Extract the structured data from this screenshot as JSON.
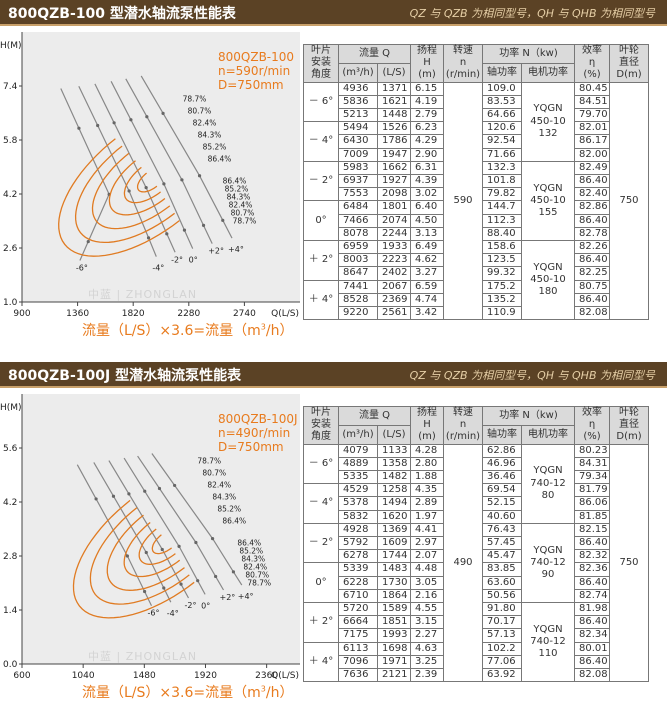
{
  "header_note": "QZ 与 QZB 为相同型号，QH 与 QHB 为相同型号",
  "table_headers": {
    "blade_angle": [
      "叶片",
      "安装",
      "角度"
    ],
    "flow": "流量 Q",
    "flow_unit_1": "(m³/h)",
    "flow_unit_2": "(L/S)",
    "head": [
      "扬程",
      "H",
      "(m)"
    ],
    "speed": [
      "转速",
      "n",
      "(r/min)"
    ],
    "power": "功率 N（kw)",
    "shaft_power": "轴功率",
    "motor_power": "电机功率",
    "efficiency": [
      "效率",
      "η",
      "(%)"
    ],
    "impeller": [
      "叶轮",
      "直径",
      "D(m)"
    ]
  },
  "panels": [
    {
      "title": "800QZB-100 型潜水轴流泵性能表",
      "params": {
        "model": "800QZB-100",
        "speed": "n=590r/min",
        "diameter": "D=750mm"
      },
      "formula": {
        "text1": "流量（L/S）×3.6=流量（m",
        "sup": "3",
        "text2": "/h）"
      },
      "watermark": "中蓝 | ZHONGLAN",
      "table": {
        "speed": "590",
        "impeller": "750",
        "groups": [
          {
            "angle": "－ 6°",
            "motor": ""
          },
          {
            "angle": "－ 4°",
            "motor": "YQGN\n450-10\n132"
          },
          {
            "angle": "－ 2°",
            "motor": ""
          },
          {
            "angle": "0°",
            "motor": "YQGN\n450-10\n155"
          },
          {
            "angle": "＋ 2°",
            "motor": ""
          },
          {
            "angle": "＋ 4°",
            "motor": "YQGN\n450-10\n180"
          }
        ],
        "rows": [
          [
            "4936",
            "1371",
            "6.15",
            "109.0",
            "80.45"
          ],
          [
            "5836",
            "1621",
            "4.19",
            "83.53",
            "84.51"
          ],
          [
            "5213",
            "1448",
            "2.79",
            "64.66",
            "79.70"
          ],
          [
            "5494",
            "1526",
            "6.23",
            "120.6",
            "82.01"
          ],
          [
            "6430",
            "1786",
            "4.29",
            "92.54",
            "86.17"
          ],
          [
            "7009",
            "1947",
            "2.90",
            "71.66",
            "82.00"
          ],
          [
            "5983",
            "1662",
            "6.31",
            "132.3",
            "82.49"
          ],
          [
            "6937",
            "1927",
            "4.39",
            "101.8",
            "86.40"
          ],
          [
            "7553",
            "2098",
            "3.02",
            "79.82",
            "82.40"
          ],
          [
            "6484",
            "1801",
            "6.40",
            "144.7",
            "82.86"
          ],
          [
            "7466",
            "2074",
            "4.50",
            "112.3",
            "86.40"
          ],
          [
            "8078",
            "2244",
            "3.13",
            "88.40",
            "82.78"
          ],
          [
            "6959",
            "1933",
            "6.49",
            "158.6",
            "82.26"
          ],
          [
            "8003",
            "2223",
            "4.62",
            "123.5",
            "86.40"
          ],
          [
            "8647",
            "2402",
            "3.27",
            "99.32",
            "82.25"
          ],
          [
            "7441",
            "2067",
            "6.59",
            "175.2",
            "80.75"
          ],
          [
            "8528",
            "2369",
            "4.74",
            "135.2",
            "86.40"
          ],
          [
            "9220",
            "2561",
            "3.42",
            "110.9",
            "82.08"
          ]
        ]
      }
    },
    {
      "title": "800QZB-100J 型潜水轴流泵性能表",
      "params": {
        "model": "800QZB-100J",
        "speed": "n=490r/min",
        "diameter": "D=750mm"
      },
      "formula": {
        "text1": "流量（L/S）×3.6=流量（m",
        "sup": "3",
        "text2": "/h）"
      },
      "watermark": "中蓝 | ZHONGLAN",
      "table": {
        "speed": "490",
        "impeller": "750",
        "groups": [
          {
            "angle": "－ 6°",
            "motor": "YQGN\n740-12\n80"
          },
          {
            "angle": "－ 4°",
            "motor": ""
          },
          {
            "angle": "－ 2°",
            "motor": "YQGN\n740-12\n90"
          },
          {
            "angle": "0°",
            "motor": ""
          },
          {
            "angle": "＋ 2°",
            "motor": "YQGN\n740-12\n110"
          },
          {
            "angle": "＋ 4°",
            "motor": ""
          }
        ],
        "rows": [
          [
            "4079",
            "1133",
            "4.28",
            "62.86",
            "80.23"
          ],
          [
            "4889",
            "1358",
            "2.80",
            "46.96",
            "84.31"
          ],
          [
            "5335",
            "1482",
            "1.88",
            "36.46",
            "79.34"
          ],
          [
            "4529",
            "1258",
            "4.35",
            "69.54",
            "81.79"
          ],
          [
            "5378",
            "1494",
            "2.89",
            "52.15",
            "86.06"
          ],
          [
            "5832",
            "1620",
            "1.97",
            "40.60",
            "81.85"
          ],
          [
            "4928",
            "1369",
            "4.41",
            "76.43",
            "82.15"
          ],
          [
            "5792",
            "1609",
            "2.97",
            "57.45",
            "86.40"
          ],
          [
            "6278",
            "1744",
            "2.07",
            "45.47",
            "82.32"
          ],
          [
            "5339",
            "1483",
            "4.48",
            "83.85",
            "82.36"
          ],
          [
            "6228",
            "1730",
            "3.05",
            "63.60",
            "86.40"
          ],
          [
            "6710",
            "1864",
            "2.16",
            "50.56",
            "82.74"
          ],
          [
            "5720",
            "1589",
            "4.55",
            "91.80",
            "81.98"
          ],
          [
            "6664",
            "1851",
            "3.15",
            "70.17",
            "86.40"
          ],
          [
            "7175",
            "1993",
            "2.27",
            "57.13",
            "82.34"
          ],
          [
            "6113",
            "1698",
            "4.63",
            "102.2",
            "80.01"
          ],
          [
            "7096",
            "1971",
            "3.25",
            "77.06",
            "86.40"
          ],
          [
            "7636",
            "2121",
            "2.39",
            "63.92",
            "82.08"
          ]
        ]
      }
    }
  ],
  "chart_data": [
    {
      "type": "line",
      "title": "800QZB-100 型潜水轴流泵性能表",
      "xlabel": "Q(L/S)",
      "ylabel": "H(M)",
      "xlim": [
        900,
        3200
      ],
      "ylim": [
        1.0,
        9.0
      ],
      "xticks": [
        "900",
        "1360",
        "1820",
        "2280",
        "2740"
      ],
      "yticks": [
        "1.0",
        "2.6",
        "4.2",
        "5.8",
        "7.4"
      ],
      "series": [
        {
          "name": "-6°",
          "x": [
            1371,
            1621,
            1448
          ],
          "y": [
            6.15,
            4.19,
            2.79
          ]
        },
        {
          "name": "-4°",
          "x": [
            1526,
            1786,
            1947
          ],
          "y": [
            6.23,
            4.29,
            2.9
          ]
        },
        {
          "name": "-2°",
          "x": [
            1662,
            1927,
            2098
          ],
          "y": [
            6.31,
            4.39,
            3.02
          ]
        },
        {
          "name": "0°",
          "x": [
            1801,
            2074,
            2244
          ],
          "y": [
            6.4,
            4.5,
            3.13
          ]
        },
        {
          "name": "+2°",
          "x": [
            1933,
            2223,
            2402
          ],
          "y": [
            6.49,
            4.62,
            3.27
          ]
        },
        {
          "name": "+4°",
          "x": [
            2067,
            2369,
            2561
          ],
          "y": [
            6.59,
            4.74,
            3.42
          ]
        }
      ],
      "efficiency_labels": [
        "78.7%",
        "80.7%",
        "82.4%",
        "84.3%",
        "85.2%",
        "86.4%",
        "86.4%",
        "85.2%",
        "84.3%",
        "82.4%",
        "80.7%",
        "78.7%"
      ],
      "angle_labels": [
        "-6°",
        "-4°",
        "-2°",
        "0°",
        "+2°",
        "+4°"
      ],
      "colors": {
        "curve": "#888888",
        "efficiency": "#e07b22"
      }
    },
    {
      "type": "line",
      "title": "800QZB-100J 型潜水轴流泵性能表",
      "xlabel": "Q(L/S)",
      "ylabel": "H(M)",
      "xlim": [
        600,
        2600
      ],
      "ylim": [
        0.0,
        7.0
      ],
      "xticks": [
        "600",
        "1040",
        "1480",
        "1920",
        "2360"
      ],
      "yticks": [
        "0.0",
        "1.4",
        "2.8",
        "4.2",
        "5.6"
      ],
      "series": [
        {
          "name": "-6°",
          "x": [
            1133,
            1358,
            1482
          ],
          "y": [
            4.28,
            2.8,
            1.88
          ]
        },
        {
          "name": "-4°",
          "x": [
            1258,
            1494,
            1620
          ],
          "y": [
            4.35,
            2.89,
            1.97
          ]
        },
        {
          "name": "-2°",
          "x": [
            1369,
            1609,
            1744
          ],
          "y": [
            4.41,
            2.97,
            2.07
          ]
        },
        {
          "name": "0°",
          "x": [
            1483,
            1730,
            1864
          ],
          "y": [
            4.48,
            3.05,
            2.16
          ]
        },
        {
          "name": "+2°",
          "x": [
            1589,
            1851,
            1993
          ],
          "y": [
            4.55,
            3.15,
            2.27
          ]
        },
        {
          "name": "+4°",
          "x": [
            1698,
            1971,
            2121
          ],
          "y": [
            4.63,
            3.25,
            2.39
          ]
        }
      ],
      "efficiency_labels": [
        "78.7%",
        "80.7%",
        "82.4%",
        "84.3%",
        "85.2%",
        "86.4%",
        "86.4%",
        "85.2%",
        "84.3%",
        "82.4%",
        "80.7%",
        "78.7%"
      ],
      "angle_labels": [
        "-6°",
        "-4°",
        "-2°",
        "0°",
        "+2°",
        "+4°"
      ],
      "colors": {
        "curve": "#888888",
        "efficiency": "#e07b22"
      }
    }
  ]
}
